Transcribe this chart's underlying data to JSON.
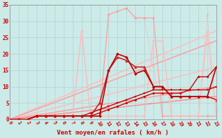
{
  "xlabel": "Vent moyen/en rafales ( km/h )",
  "xlim": [
    0,
    23
  ],
  "ylim": [
    0,
    35
  ],
  "xticks": [
    0,
    1,
    2,
    3,
    4,
    5,
    6,
    7,
    8,
    9,
    10,
    11,
    12,
    13,
    14,
    15,
    16,
    17,
    18,
    19,
    20,
    21,
    22,
    23
  ],
  "yticks": [
    0,
    5,
    10,
    15,
    20,
    25,
    30,
    35
  ],
  "background_color": "#cceae8",
  "grid_color": "#aacccc",
  "series": [
    {
      "x": [
        0,
        1,
        2,
        3,
        4,
        5,
        6,
        7,
        8,
        9,
        10,
        11,
        12,
        13,
        14,
        15,
        16,
        17,
        18,
        19,
        20,
        21,
        22,
        23
      ],
      "y": [
        0,
        0,
        0,
        1,
        1,
        1,
        1,
        2,
        27,
        1,
        1,
        32,
        33,
        34,
        31,
        31,
        16,
        1,
        1,
        1,
        1,
        1,
        32,
        1
      ],
      "color": "#ffaaaa",
      "marker": "o",
      "markersize": 1.5,
      "linewidth": 0.7,
      "linestyle": "dotted"
    },
    {
      "x": [
        0,
        23
      ],
      "y": [
        0,
        27
      ],
      "color": "#ffbbbb",
      "marker": null,
      "markersize": 0,
      "linewidth": 1.0,
      "linestyle": "solid"
    },
    {
      "x": [
        0,
        23
      ],
      "y": [
        0,
        16
      ],
      "color": "#ffbbbb",
      "marker": null,
      "markersize": 0,
      "linewidth": 1.0,
      "linestyle": "solid"
    },
    {
      "x": [
        0,
        23
      ],
      "y": [
        0,
        24
      ],
      "color": "#ff9999",
      "marker": null,
      "markersize": 0,
      "linewidth": 1.0,
      "linestyle": "solid"
    },
    {
      "x": [
        0,
        23
      ],
      "y": [
        0,
        10
      ],
      "color": "#ff9999",
      "marker": null,
      "markersize": 0,
      "linewidth": 1.0,
      "linestyle": "solid"
    },
    {
      "x": [
        0,
        23
      ],
      "y": [
        0,
        7
      ],
      "color": "#ff8888",
      "marker": null,
      "markersize": 0,
      "linewidth": 1.0,
      "linestyle": "solid"
    },
    {
      "x": [
        0,
        1,
        2,
        3,
        4,
        5,
        6,
        7,
        8,
        9,
        10,
        11,
        12,
        13,
        14,
        15,
        16,
        17,
        18,
        19,
        20,
        21,
        22,
        23
      ],
      "y": [
        0,
        0,
        0,
        1,
        1,
        1,
        1,
        1,
        1,
        1,
        1,
        32,
        33,
        34,
        31,
        31,
        31,
        1,
        1,
        1,
        1,
        1,
        1,
        1
      ],
      "color": "#ff9999",
      "marker": "o",
      "markersize": 1.8,
      "linewidth": 0.8,
      "linestyle": "solid"
    },
    {
      "x": [
        0,
        1,
        2,
        3,
        4,
        5,
        6,
        7,
        8,
        9,
        10,
        11,
        12,
        13,
        14,
        15,
        16,
        17,
        18,
        19,
        20,
        21,
        22,
        23
      ],
      "y": [
        0,
        0,
        0,
        1,
        1,
        1,
        1,
        1,
        27,
        1,
        1,
        1,
        1,
        1,
        1,
        1,
        24,
        24,
        1,
        1,
        1,
        1,
        27,
        1
      ],
      "color": "#ffbbbb",
      "marker": "o",
      "markersize": 2.0,
      "linewidth": 1.0,
      "linestyle": "solid"
    },
    {
      "comment": "darker red with triangle markers - peaks ~19 at x=12, ~18 at x=13, drops to ~16 x=14,~16 x=15, ~10 x=16, ~10 x=17, ~7 x=18-20",
      "x": [
        0,
        1,
        2,
        3,
        4,
        5,
        6,
        7,
        8,
        9,
        10,
        11,
        12,
        13,
        14,
        15,
        16,
        17,
        18,
        19,
        20,
        21,
        22,
        23
      ],
      "y": [
        0,
        0,
        0,
        1,
        1,
        1,
        1,
        1,
        1,
        1,
        5,
        15,
        19,
        18,
        16,
        16,
        10,
        10,
        7,
        7,
        7,
        7,
        7,
        6
      ],
      "color": "#cc2222",
      "marker": "^",
      "markersize": 2.5,
      "linewidth": 1.2,
      "linestyle": "solid"
    },
    {
      "x": [
        0,
        1,
        2,
        3,
        4,
        5,
        6,
        7,
        8,
        9,
        10,
        11,
        12,
        13,
        14,
        15,
        16,
        17,
        18,
        19,
        20,
        21,
        22,
        23
      ],
      "y": [
        0,
        0,
        0,
        1,
        1,
        1,
        1,
        1,
        1,
        1,
        1,
        15,
        20,
        19,
        14,
        15,
        10,
        10,
        7,
        7,
        7,
        7,
        7,
        16
      ],
      "color": "#bb0000",
      "marker": "D",
      "markersize": 2.0,
      "linewidth": 1.2,
      "linestyle": "solid"
    },
    {
      "x": [
        0,
        1,
        2,
        3,
        4,
        5,
        6,
        7,
        8,
        9,
        10,
        11,
        12,
        13,
        14,
        15,
        16,
        17,
        18,
        19,
        20,
        21,
        22,
        23
      ],
      "y": [
        0,
        0,
        0,
        1,
        1,
        1,
        1,
        1,
        1,
        1,
        2,
        3,
        4,
        5,
        6,
        7,
        8,
        8,
        8,
        8,
        9,
        13,
        13,
        16
      ],
      "color": "#cc0000",
      "marker": "o",
      "markersize": 2.0,
      "linewidth": 1.0,
      "linestyle": "solid"
    },
    {
      "x": [
        0,
        1,
        2,
        3,
        4,
        5,
        6,
        7,
        8,
        9,
        10,
        11,
        12,
        13,
        14,
        15,
        16,
        17,
        18,
        19,
        20,
        21,
        22,
        23
      ],
      "y": [
        0,
        0,
        0,
        1,
        1,
        1,
        1,
        1,
        1,
        2,
        3,
        4,
        5,
        6,
        7,
        8,
        9,
        9,
        9,
        9,
        9,
        9,
        9,
        10
      ],
      "color": "#cc0000",
      "marker": "s",
      "markersize": 2.0,
      "linewidth": 1.0,
      "linestyle": "solid"
    }
  ]
}
